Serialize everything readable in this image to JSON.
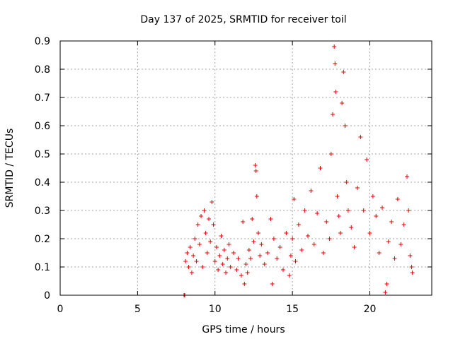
{
  "chart_data": {
    "type": "scatter",
    "title": "Day 137 of 2025, SRMTID for receiver toil",
    "xlabel": "GPS time / hours",
    "ylabel": "SRMTID / TECUs",
    "xlim": [
      0,
      24
    ],
    "ylim": [
      0,
      0.9
    ],
    "xticks": [
      "0",
      "5",
      "10",
      "15",
      "20"
    ],
    "yticks": [
      "0",
      "0.1",
      "0.2",
      "0.3",
      "0.4",
      "0.5",
      "0.6",
      "0.7",
      "0.8",
      "0.9"
    ],
    "grid": true,
    "marker": "+",
    "color": "#e00000",
    "series": [
      {
        "name": "SRMTID",
        "points": [
          [
            8.0,
            0.0
          ],
          [
            8.05,
            0.0
          ],
          [
            8.1,
            0.12
          ],
          [
            8.2,
            0.15
          ],
          [
            8.3,
            0.1
          ],
          [
            8.4,
            0.17
          ],
          [
            8.5,
            0.08
          ],
          [
            8.6,
            0.14
          ],
          [
            8.7,
            0.2
          ],
          [
            8.8,
            0.12
          ],
          [
            8.9,
            0.25
          ],
          [
            9.0,
            0.18
          ],
          [
            9.1,
            0.28
          ],
          [
            9.2,
            0.1
          ],
          [
            9.3,
            0.3
          ],
          [
            9.4,
            0.22
          ],
          [
            9.5,
            0.15
          ],
          [
            9.6,
            0.27
          ],
          [
            9.7,
            0.19
          ],
          [
            9.8,
            0.33
          ],
          [
            9.9,
            0.25
          ],
          [
            10.0,
            0.12
          ],
          [
            10.1,
            0.17
          ],
          [
            10.2,
            0.09
          ],
          [
            10.3,
            0.14
          ],
          [
            10.4,
            0.21
          ],
          [
            10.5,
            0.11
          ],
          [
            10.6,
            0.16
          ],
          [
            10.7,
            0.08
          ],
          [
            10.8,
            0.13
          ],
          [
            10.9,
            0.18
          ],
          [
            11.0,
            0.1
          ],
          [
            11.2,
            0.15
          ],
          [
            11.4,
            0.09
          ],
          [
            11.5,
            0.13
          ],
          [
            11.7,
            0.07
          ],
          [
            11.8,
            0.26
          ],
          [
            11.9,
            0.04
          ],
          [
            12.0,
            0.11
          ],
          [
            12.1,
            0.08
          ],
          [
            12.2,
            0.16
          ],
          [
            12.3,
            0.13
          ],
          [
            12.4,
            0.27
          ],
          [
            12.5,
            0.19
          ],
          [
            12.6,
            0.46
          ],
          [
            12.65,
            0.44
          ],
          [
            12.7,
            0.35
          ],
          [
            12.8,
            0.22
          ],
          [
            12.9,
            0.14
          ],
          [
            13.0,
            0.18
          ],
          [
            13.2,
            0.11
          ],
          [
            13.4,
            0.15
          ],
          [
            13.6,
            0.27
          ],
          [
            13.7,
            0.04
          ],
          [
            13.8,
            0.2
          ],
          [
            14.0,
            0.13
          ],
          [
            14.2,
            0.17
          ],
          [
            14.4,
            0.09
          ],
          [
            14.6,
            0.22
          ],
          [
            14.8,
            0.07
          ],
          [
            14.9,
            0.14
          ],
          [
            15.0,
            0.2
          ],
          [
            15.1,
            0.34
          ],
          [
            15.2,
            0.12
          ],
          [
            15.4,
            0.25
          ],
          [
            15.6,
            0.16
          ],
          [
            15.8,
            0.3
          ],
          [
            16.0,
            0.21
          ],
          [
            16.2,
            0.37
          ],
          [
            16.4,
            0.18
          ],
          [
            16.6,
            0.29
          ],
          [
            16.8,
            0.45
          ],
          [
            17.0,
            0.15
          ],
          [
            17.2,
            0.26
          ],
          [
            17.4,
            0.2
          ],
          [
            17.5,
            0.5
          ],
          [
            17.6,
            0.64
          ],
          [
            17.7,
            0.88
          ],
          [
            17.75,
            0.82
          ],
          [
            17.8,
            0.72
          ],
          [
            17.9,
            0.35
          ],
          [
            18.0,
            0.28
          ],
          [
            18.1,
            0.22
          ],
          [
            18.2,
            0.68
          ],
          [
            18.3,
            0.79
          ],
          [
            18.4,
            0.6
          ],
          [
            18.5,
            0.4
          ],
          [
            18.6,
            0.3
          ],
          [
            18.8,
            0.24
          ],
          [
            19.0,
            0.17
          ],
          [
            19.2,
            0.38
          ],
          [
            19.4,
            0.56
          ],
          [
            19.6,
            0.3
          ],
          [
            19.8,
            0.48
          ],
          [
            20.0,
            0.22
          ],
          [
            20.2,
            0.35
          ],
          [
            20.4,
            0.28
          ],
          [
            20.6,
            0.15
          ],
          [
            20.8,
            0.31
          ],
          [
            21.0,
            0.01
          ],
          [
            21.1,
            0.04
          ],
          [
            21.2,
            0.19
          ],
          [
            21.4,
            0.26
          ],
          [
            21.6,
            0.13
          ],
          [
            21.8,
            0.34
          ],
          [
            22.0,
            0.18
          ],
          [
            22.2,
            0.25
          ],
          [
            22.4,
            0.42
          ],
          [
            22.5,
            0.3
          ],
          [
            22.6,
            0.14
          ],
          [
            22.7,
            0.1
          ],
          [
            22.75,
            0.08
          ]
        ]
      }
    ]
  }
}
